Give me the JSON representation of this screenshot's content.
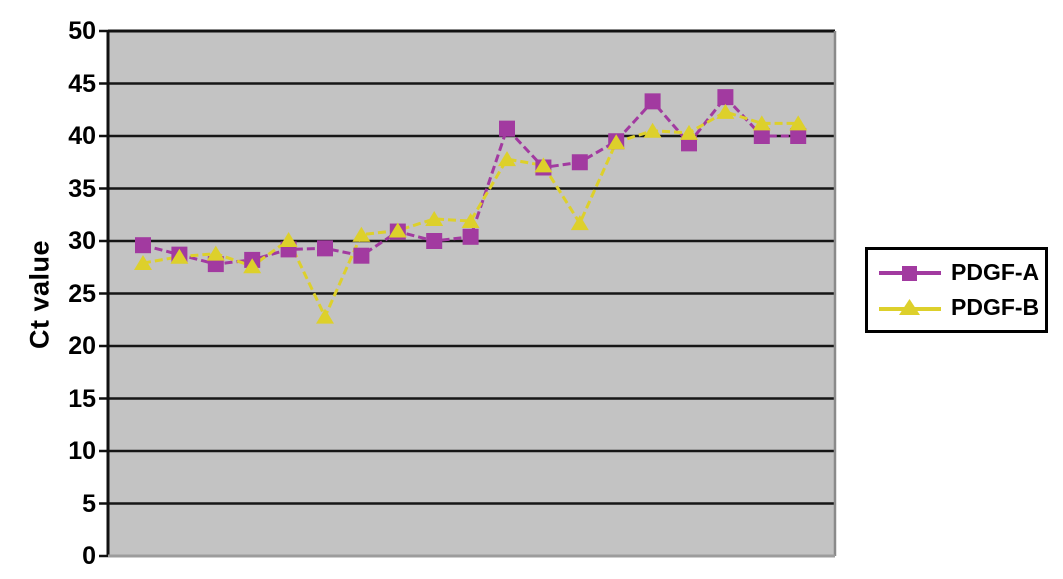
{
  "chart_data": {
    "type": "line",
    "title": "",
    "xlabel": "",
    "ylabel": "Ct value",
    "ylim": [
      0,
      50
    ],
    "yticks": [
      50,
      45,
      40,
      35,
      30,
      25,
      20,
      15,
      10,
      5,
      0
    ],
    "x_tick_labels_visible": false,
    "n_points": 19,
    "grid": "horizontal-black-lines",
    "plot_background": "#c3c3c3",
    "legend_position": "right-outside",
    "series": [
      {
        "name": "PDGF-A",
        "color": "#a23aa0",
        "marker": "square",
        "line_style": "dashed",
        "values": [
          29.6,
          28.7,
          27.8,
          28.2,
          29.2,
          29.3,
          28.6,
          30.9,
          30.0,
          30.4,
          40.7,
          37.0,
          37.5,
          39.5,
          43.3,
          39.3,
          43.7,
          40.0,
          40.0
        ]
      },
      {
        "name": "PDGF-B",
        "color": "#ddd02b",
        "marker": "triangle",
        "line_style": "dashed",
        "values": [
          27.9,
          28.5,
          28.8,
          27.6,
          30.1,
          22.8,
          30.6,
          31.0,
          32.1,
          31.9,
          37.8,
          37.2,
          31.7,
          39.4,
          40.5,
          40.3,
          42.3,
          41.2,
          41.2
        ]
      }
    ]
  }
}
